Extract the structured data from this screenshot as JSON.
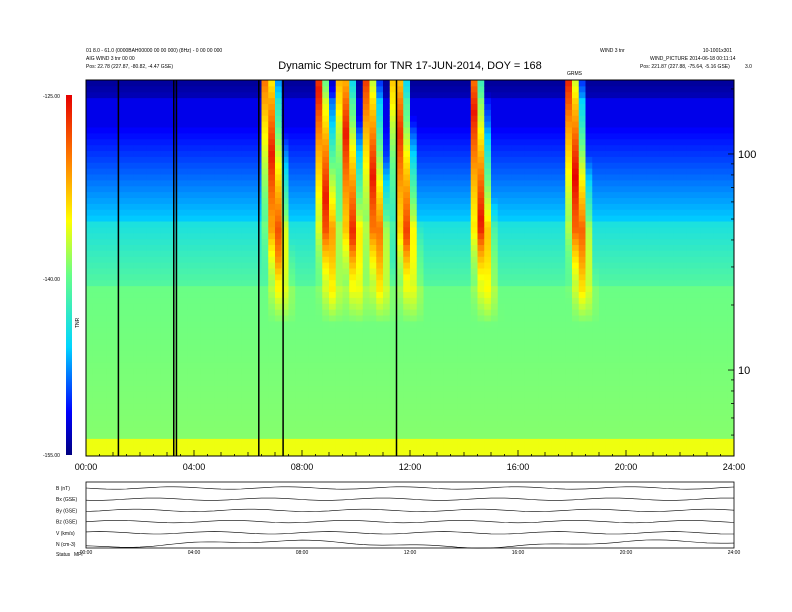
{
  "header": {
    "left_line1": "01 8.0 - 61.0 (0000BAH00000 00 00 000) (8Hz) - 0 00 00 000",
    "left_line2": "AIG WIND 3 tnr 00 00",
    "left_line3": "Pos:     22.78 (227.87, -80.82, -4.47 GSE)",
    "right_line1": "10-1001x301",
    "right_line1b": "WIND 3 tnr",
    "right_line2": "WIND_PICTURE 2014-06-18 00:11:14",
    "right_line3": "Pos:     221.87 (227.88, -75.64, -5.16 GSE)",
    "right_corner": "3.0",
    "marker_label": "GRMS"
  },
  "chart_data": {
    "type": "heatmap",
    "title": "Dynamic Spectrum for TNR 17-JUN-2014, DOY = 168",
    "x_ticks": [
      "00:00",
      "04:00",
      "08:00",
      "12:00",
      "16:00",
      "20:00",
      "24:00"
    ],
    "x_range_hours": [
      0,
      24
    ],
    "y_axis": {
      "scale": "log",
      "unit": "kHz",
      "ticks": [
        10,
        100
      ],
      "range": [
        4,
        220
      ]
    },
    "colorbar": {
      "label": "TNR",
      "ticks": [
        "-125.00",
        "-140.00",
        "-155.00"
      ],
      "range": [
        -155,
        -125
      ]
    },
    "background_level": -141,
    "type_iii_bursts": [
      {
        "start_hour": 6.7,
        "peak": -126
      },
      {
        "start_hour": 8.6,
        "peak": -126
      },
      {
        "start_hour": 9.5,
        "peak": -126
      },
      {
        "start_hour": 10.4,
        "peak": -126
      },
      {
        "start_hour": 11.5,
        "peak": -127
      },
      {
        "start_hour": 14.3,
        "peak": -126
      },
      {
        "start_hour": 17.9,
        "peak": -125
      }
    ],
    "data_gap_lines_hours": [
      1.2,
      3.25,
      3.35,
      6.4,
      7.3,
      11.5
    ],
    "panels": [
      {
        "label": "B (nT)"
      },
      {
        "label": "Bx (GSE)"
      },
      {
        "label": "By (GSE)"
      },
      {
        "label": "Bz (GSE)"
      },
      {
        "label": "V (km/s)"
      },
      {
        "label": "N (cm-3)"
      }
    ],
    "status_label": "Status",
    "status_value": "MFI"
  }
}
